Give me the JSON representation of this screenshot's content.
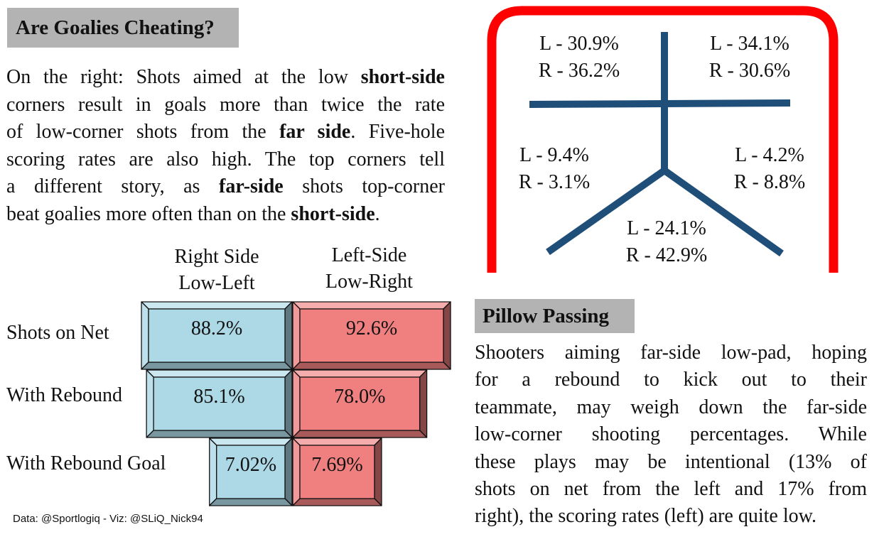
{
  "header1": "Are Goalies Cheating?",
  "intro_lines": [
    [
      {
        "t": "On the right: Shots aimed at the low "
      },
      {
        "t": "short-side",
        "b": true
      }
    ],
    [
      {
        "t": "corners result in goals more than twice the rate"
      }
    ],
    [
      {
        "t": "of low-corner shots from the "
      },
      {
        "t": "far side",
        "b": true
      },
      {
        "t": ". Five-hole"
      }
    ],
    [
      {
        "t": "scoring rates are also high. The top corners tell"
      }
    ],
    [
      {
        "t": "a different story, as "
      },
      {
        "t": "far-side",
        "b": true
      },
      {
        "t": " shots top-corner"
      }
    ],
    [
      {
        "t": "beat goalies more often than on the "
      },
      {
        "t": "short-side",
        "b": true
      },
      {
        "t": "."
      }
    ]
  ],
  "header2": "Pillow Passing",
  "pillow_lines": [
    "Shooters aiming far-side low-pad, hoping",
    "for a rebound to kick out to their",
    "teammate, may weigh down the far-side",
    "low-corner shooting percentages. While",
    "these plays may be intentional (13% of",
    "shots on net from the left and 17% from",
    "right), the scoring rates (left) are quite low."
  ],
  "footer": "Data: @Sportlogiq - Viz: @SLiQ_Nick94",
  "colors": {
    "left_bar": "#add8e6",
    "right_bar": "#f08080",
    "net": "#ff0000",
    "stick": "#1f4e79",
    "header_bg": "#b3b3b3"
  },
  "chart_data": [
    {
      "type": "bar",
      "title": "",
      "columns": [
        {
          "name_lines": [
            "Right Side",
            "Low-Left"
          ]
        },
        {
          "name_lines": [
            "Left-Side",
            "Low-Right"
          ]
        }
      ],
      "categories": [
        "Shots on Net",
        "With Rebound",
        "With Rebound Goal"
      ],
      "series": [
        {
          "name": "Right Side Low-Left",
          "values": [
            88.2,
            85.1,
            7.02
          ],
          "labels": [
            "88.2%",
            "85.1%",
            "7.02%"
          ]
        },
        {
          "name": "Left-Side Low-Right",
          "values": [
            92.6,
            78.0,
            7.69
          ],
          "labels": [
            "92.6%",
            "78.0%",
            "7.69%"
          ]
        }
      ],
      "ylim": [
        0,
        100
      ]
    },
    {
      "type": "table",
      "zones": [
        {
          "zone": "top-left",
          "lines": [
            "L - 30.9%",
            "R - 36.2%"
          ]
        },
        {
          "zone": "top-right",
          "lines": [
            "L - 34.1%",
            "R - 30.6%"
          ]
        },
        {
          "zone": "low-left",
          "lines": [
            "L - 9.4%",
            "R - 3.1%"
          ]
        },
        {
          "zone": "low-right",
          "lines": [
            "L - 4.2%",
            "R - 8.8%"
          ]
        },
        {
          "zone": "five-hole",
          "lines": [
            "L - 24.1%",
            "R - 42.9%"
          ]
        }
      ]
    }
  ]
}
